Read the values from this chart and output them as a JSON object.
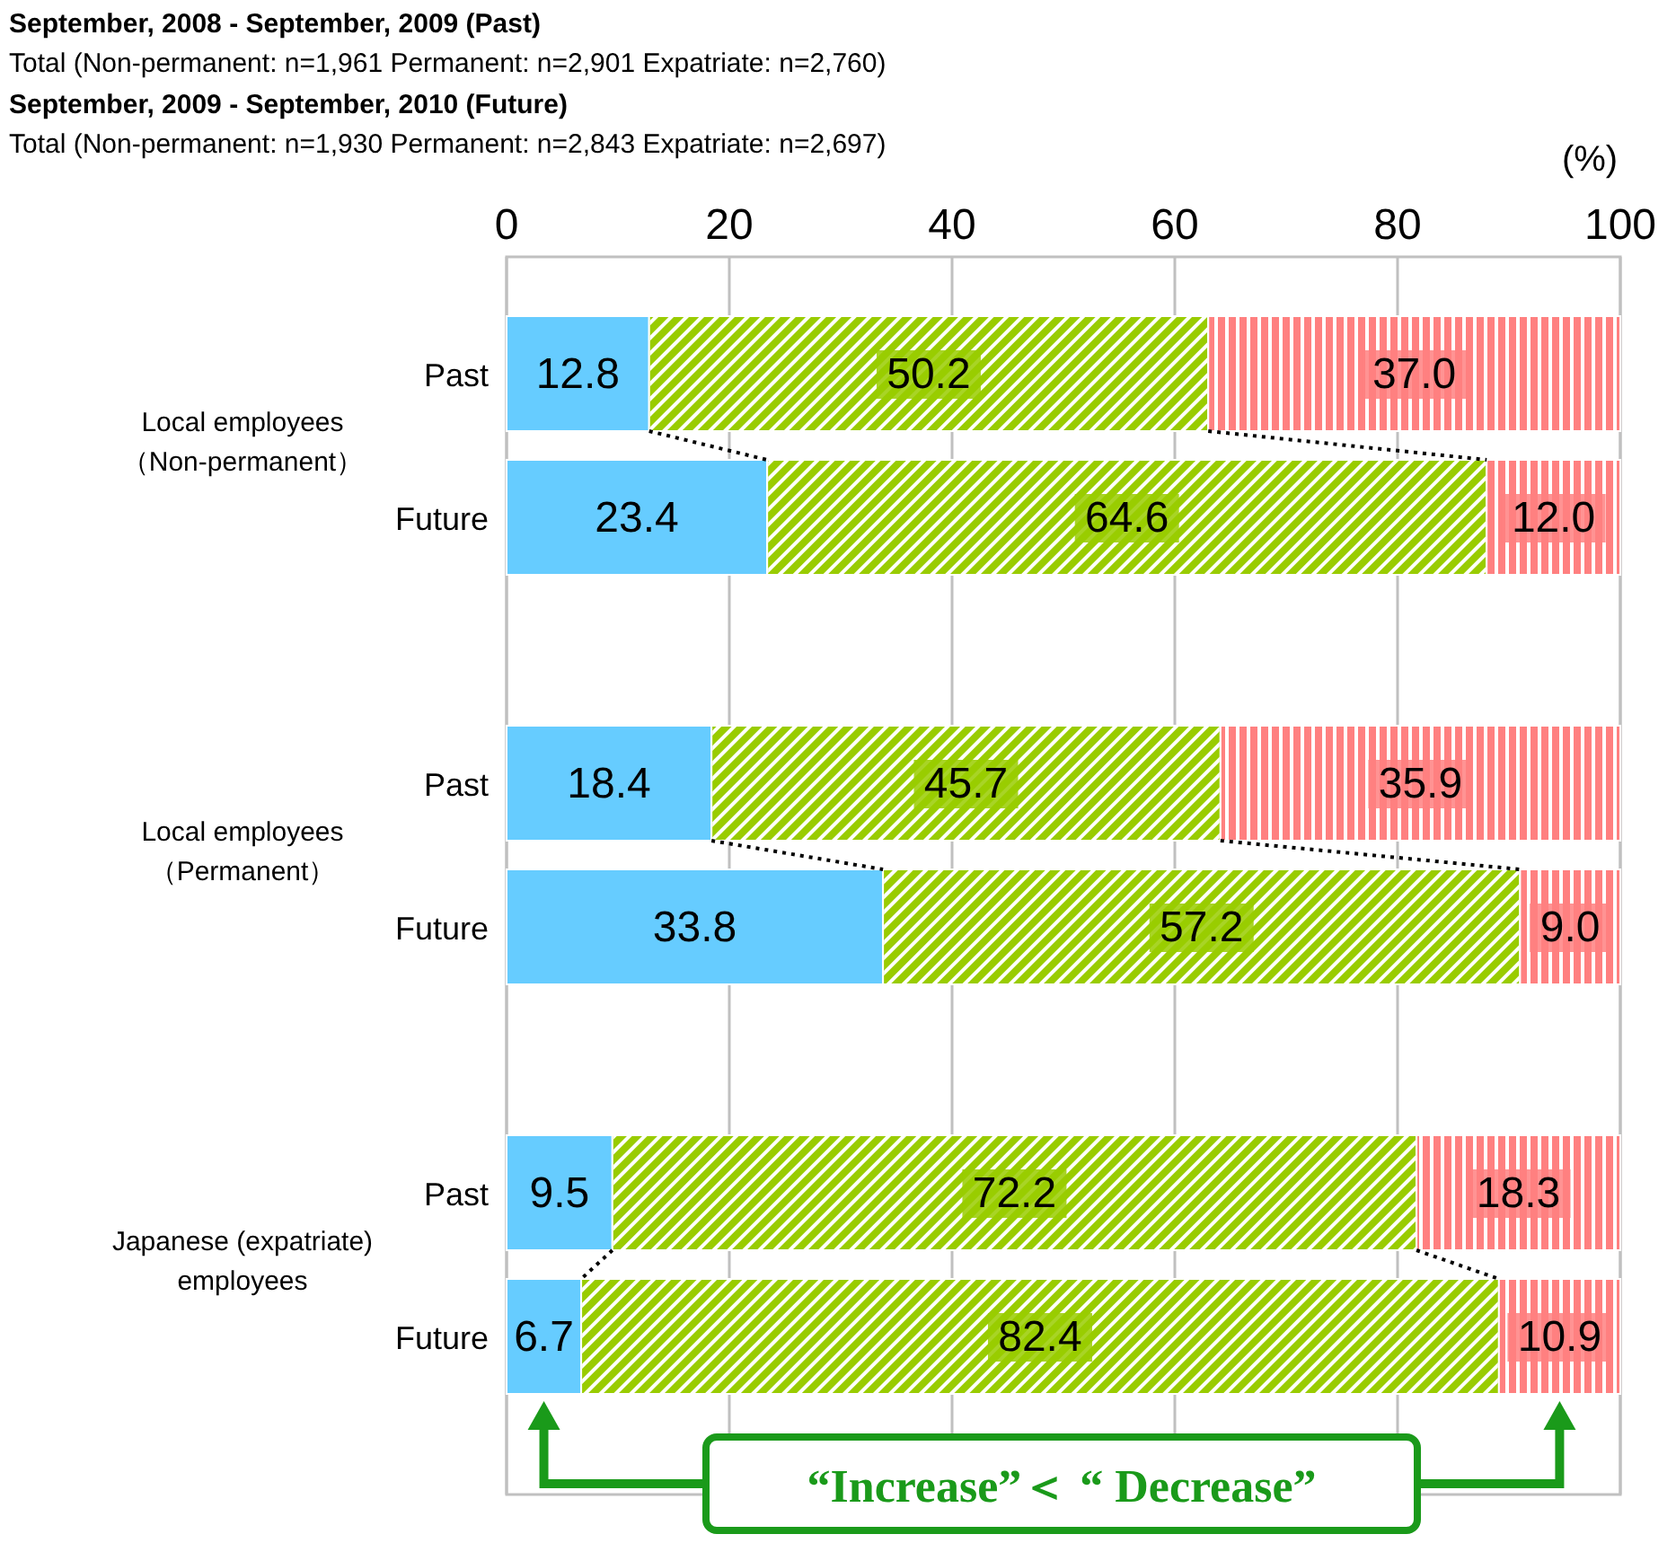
{
  "chart_data": {
    "type": "bar",
    "orientation": "horizontal",
    "stacked": true,
    "title": "September, 2008 - September, 2009 (Past)",
    "subtitle": "Total (Non-permanent: n=1,961   Permanent: n=2,901   Expatriate: n=2,760)",
    "xlabel": "(%)",
    "categories": [
      "Past",
      "Future",
      "Past",
      "Future",
      "Past",
      "Future"
    ],
    "series": [
      {
        "color": "#66ccff",
        "values": [
          12.8,
          23.4,
          18.4,
          33.8,
          9.5,
          6.7
        ],
        "value_labels": [
          "12.8",
          "23.4",
          "18.4",
          "33.8",
          "9.5",
          "6.7"
        ]
      },
      {
        "color": "#99cc00",
        "values": [
          50.2,
          64.6,
          45.7,
          57.2,
          72.2,
          82.4
        ],
        "value_labels": [
          "50.2",
          "64.6",
          "45.7",
          "57.2",
          "72.2",
          "82.4"
        ]
      },
      {
        "color": "#ff8080",
        "values": [
          37.0,
          12.0,
          35.9,
          9.0,
          18.3,
          10.9
        ],
        "value_labels": [
          "37.0",
          "12.0",
          "35.9",
          "9.0",
          "18.3",
          "10.9"
        ]
      }
    ],
    "xlim": [
      0,
      100
    ],
    "xticks": [
      0,
      20,
      40,
      60,
      80,
      100
    ],
    "grid": "x",
    "annotations": [
      "September, 2009 - September, 2010 (Future)",
      "Total (Non-permanent: n=1,930   Permanent: n=2,843   Expatriate: n=2,697)",
      "Local employees\n（Non-permanent）",
      "Local employees\n（Permanent）",
      "Japanese (expatriate)\nemployees",
      "“Increase”＜ “ Decrease”"
    ]
  }
}
